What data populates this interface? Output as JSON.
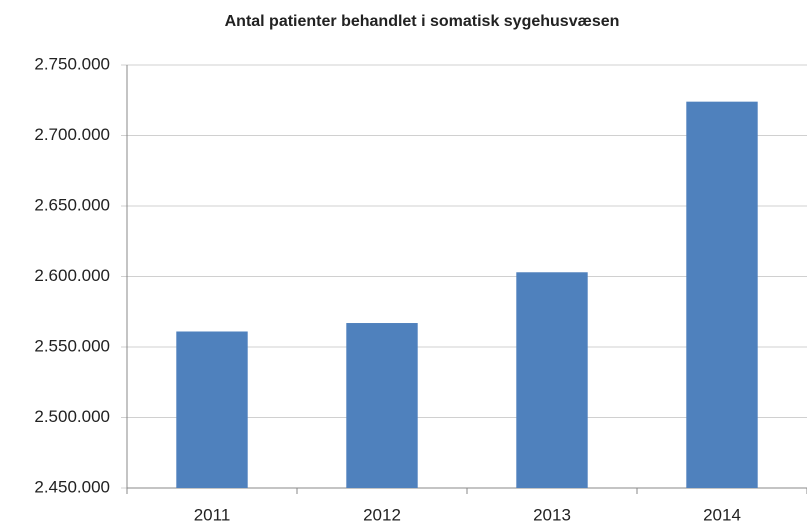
{
  "chart_data": {
    "type": "bar",
    "title": "Antal patienter behandlet i somatisk sygehusvæsen",
    "categories": [
      "2011",
      "2012",
      "2013",
      "2014"
    ],
    "values": [
      2561000,
      2567000,
      2603000,
      2724000
    ],
    "color": "#4f81bd",
    "ylim": [
      2450000,
      2750000
    ],
    "yticks": [
      {
        "value": 2450000,
        "label": "2.450.000"
      },
      {
        "value": 2500000,
        "label": "2.500.000"
      },
      {
        "value": 2550000,
        "label": "2.550.000"
      },
      {
        "value": 2600000,
        "label": "2.600.000"
      },
      {
        "value": 2650000,
        "label": "2.650.000"
      },
      {
        "value": 2700000,
        "label": "2.700.000"
      },
      {
        "value": 2750000,
        "label": "2.750.000"
      }
    ],
    "grid": true
  }
}
